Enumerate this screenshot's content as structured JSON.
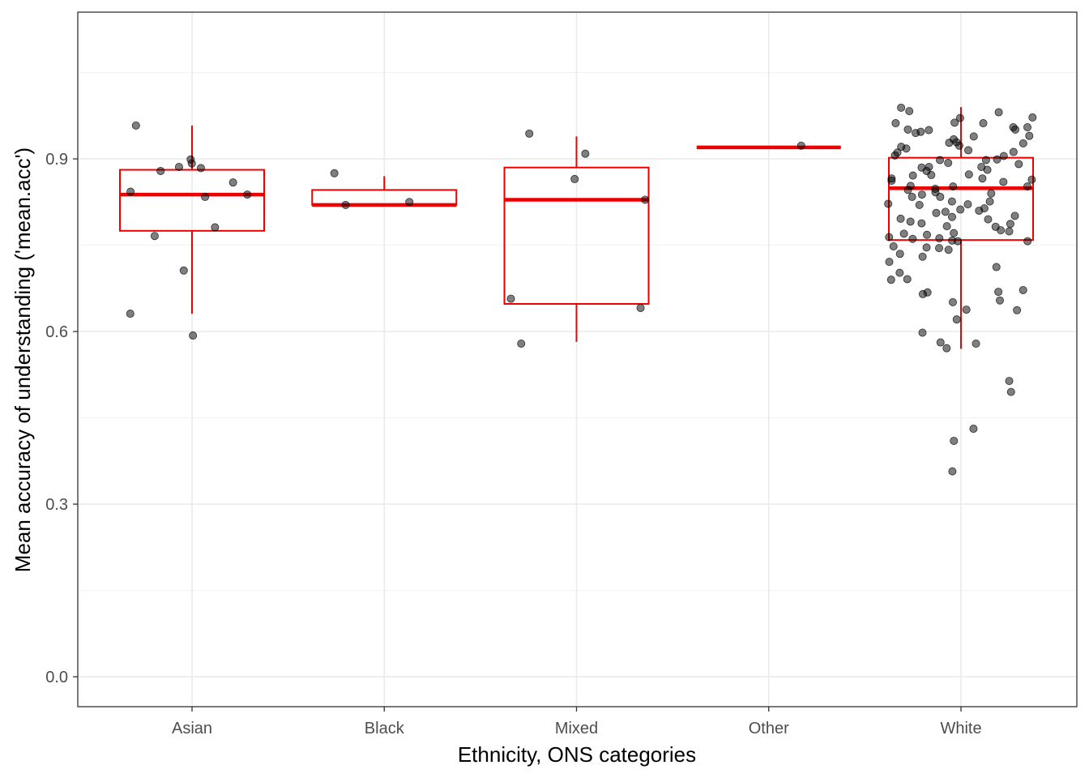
{
  "chart_data": {
    "type": "boxplot",
    "title": "",
    "xlabel": "Ethnicity, ONS categories",
    "ylabel": "Mean accuracy of understanding ('mean.acc')",
    "categories": [
      "Asian",
      "Black",
      "Mixed",
      "Other",
      "White"
    ],
    "ylim": [
      -0.052,
      1.155
    ],
    "y_ticks": [
      0.0,
      0.3,
      0.6,
      0.9
    ],
    "y_tick_labels": [
      "0.0",
      "0.3",
      "0.6",
      "0.9"
    ],
    "grid": true,
    "box_color": "#ee0000",
    "point_color": "#000000",
    "boxes": [
      {
        "category": "Asian",
        "lower_whisker": 0.631,
        "q1": 0.775,
        "median": 0.838,
        "q3": 0.881,
        "upper_whisker": 0.958
      },
      {
        "category": "Black",
        "lower_whisker": 0.82,
        "q1": 0.82,
        "median": 0.82,
        "q3": 0.846,
        "upper_whisker": 0.87
      },
      {
        "category": "Mixed",
        "lower_whisker": 0.582,
        "q1": 0.648,
        "median": 0.829,
        "q3": 0.885,
        "upper_whisker": 0.939
      },
      {
        "category": "Other",
        "lower_whisker": 0.92,
        "q1": 0.92,
        "median": 0.92,
        "q3": 0.92,
        "upper_whisker": 0.92
      },
      {
        "category": "White",
        "lower_whisker": 0.57,
        "q1": 0.759,
        "median": 0.849,
        "q3": 0.902,
        "upper_whisker": 0.99
      }
    ],
    "points": [
      {
        "category": "Asian",
        "values": [
          0.899,
          0.884,
          0.958,
          0.766,
          0.706,
          0.593,
          0.843,
          0.838,
          0.834,
          0.886,
          0.879,
          0.859,
          0.781,
          0.631,
          0.892
        ]
      },
      {
        "category": "Black",
        "values": [
          0.82,
          0.825,
          0.875
        ]
      },
      {
        "category": "Mixed",
        "values": [
          0.909,
          0.865,
          0.944,
          0.657,
          0.641,
          0.829,
          0.579
        ]
      },
      {
        "category": "Other",
        "values": [
          0.923
        ]
      },
      {
        "category": "White",
        "values": [
          0.651,
          0.955,
          0.945,
          0.928,
          0.915,
          0.898,
          0.886,
          0.871,
          0.864,
          0.852,
          0.838,
          0.821,
          0.806,
          0.791,
          0.776,
          0.762,
          0.745,
          0.702,
          0.672,
          0.665,
          0.637,
          0.621,
          0.598,
          0.579,
          0.571,
          0.981,
          0.962,
          0.951,
          0.947,
          0.934,
          0.921,
          0.906,
          0.893,
          0.881,
          0.866,
          0.852,
          0.842,
          0.826,
          0.812,
          0.799,
          0.787,
          0.771,
          0.758,
          0.746,
          0.73,
          0.712,
          0.691,
          0.668,
          0.654,
          0.955,
          0.94,
          0.927,
          0.912,
          0.899,
          0.886,
          0.873,
          0.862,
          0.848,
          0.834,
          0.82,
          0.808,
          0.795,
          0.782,
          0.768,
          0.757,
          0.764,
          0.581,
          0.431,
          0.357,
          0.989,
          0.972,
          0.963,
          0.951,
          0.939,
          0.929,
          0.918,
          0.905,
          0.891,
          0.879,
          0.866,
          0.853,
          0.84,
          0.826,
          0.814,
          0.801,
          0.788,
          0.774,
          0.761,
          0.748,
          0.735,
          0.69,
          0.638,
          0.514,
          0.495,
          0.983,
          0.971,
          0.962,
          0.95,
          0.923,
          0.911,
          0.898,
          0.885,
          0.872,
          0.86,
          0.846,
          0.834,
          0.822,
          0.81,
          0.796,
          0.783,
          0.77,
          0.757,
          0.742,
          0.721,
          0.669,
          0.41
        ]
      }
    ]
  }
}
